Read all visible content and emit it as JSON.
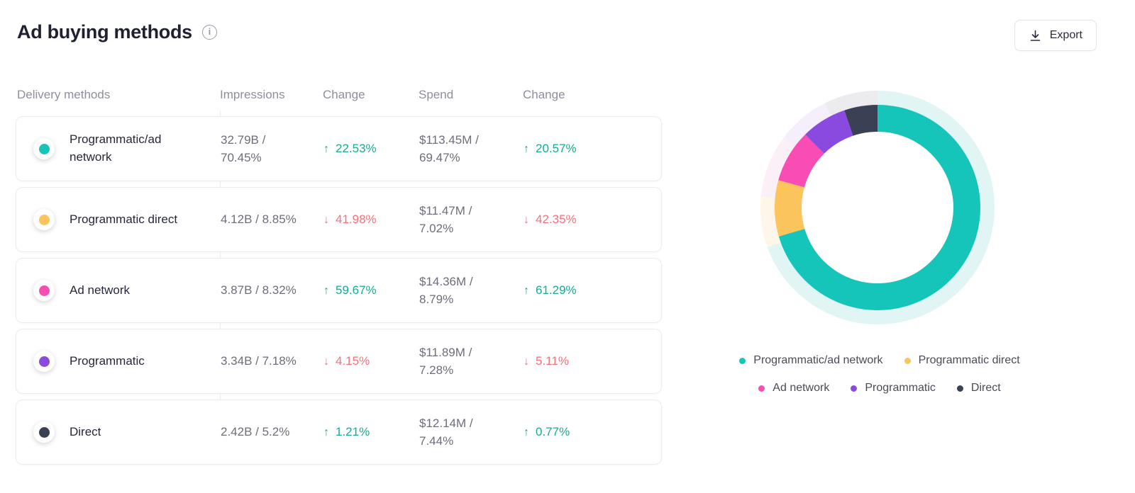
{
  "header": {
    "title": "Ad buying methods",
    "info_tooltip": "i",
    "export_label": "Export"
  },
  "colors": {
    "positive": "#19ab91",
    "negative": "#f5707c",
    "text_dark": "#26273c",
    "text_gray": "#6e6d7b",
    "header_gray": "#8f8e9c"
  },
  "icons": {
    "up": "↑",
    "down": "↓"
  },
  "table": {
    "columns": [
      "Delivery methods",
      "Impressions",
      "Change",
      "Spend",
      "Change"
    ],
    "rows": [
      {
        "name": "Programmatic/ad network",
        "impressions": "32.79B / 70.45%",
        "impressions_change": {
          "dir": "up",
          "value": "22.53%"
        },
        "spend": "$113.45M / 69.47%",
        "spend_change": {
          "dir": "up",
          "value": "20.57%"
        }
      },
      {
        "name": "Programmatic direct",
        "impressions": "4.12B / 8.85%",
        "impressions_change": {
          "dir": "down",
          "value": "41.98%"
        },
        "spend": "$11.47M / 7.02%",
        "spend_change": {
          "dir": "down",
          "value": "42.35%"
        }
      },
      {
        "name": "Ad network",
        "impressions": "3.87B / 8.32%",
        "impressions_change": {
          "dir": "up",
          "value": "59.67%"
        },
        "spend": "$14.36M / 8.79%",
        "spend_change": {
          "dir": "up",
          "value": "61.29%"
        }
      },
      {
        "name": "Programmatic",
        "impressions": "3.34B / 7.18%",
        "impressions_change": {
          "dir": "down",
          "value": "4.15%"
        },
        "spend": "$11.89M / 7.28%",
        "spend_change": {
          "dir": "down",
          "value": "5.11%"
        }
      },
      {
        "name": "Direct",
        "impressions": "2.42B / 5.2%",
        "impressions_change": {
          "dir": "up",
          "value": "1.21%"
        },
        "spend": "$12.14M / 7.44%",
        "spend_change": {
          "dir": "up",
          "value": "0.77%"
        }
      }
    ]
  },
  "chart_data": {
    "type": "pie",
    "subtype": "double-ring-donut",
    "title": "Ad buying methods",
    "start_angle_deg": 0,
    "direction": "clockwise",
    "legend_position": "bottom",
    "rings": {
      "inner": "impressions_share_pct",
      "outer": "spend_share_pct"
    },
    "series": [
      {
        "name": "Programmatic/ad network",
        "color": "#16c5b9",
        "pale_color": "#e0f5f4",
        "impressions_share_pct": 70.45,
        "spend_share_pct": 69.47
      },
      {
        "name": "Programmatic direct",
        "color": "#fbc45d",
        "pale_color": "#fdf6e9",
        "impressions_share_pct": 8.85,
        "spend_share_pct": 7.02
      },
      {
        "name": "Ad network",
        "color": "#fa4db3",
        "pale_color": "#fcf0f8",
        "impressions_share_pct": 8.32,
        "spend_share_pct": 8.79
      },
      {
        "name": "Programmatic",
        "color": "#8a4ae0",
        "pale_color": "#f5eefb",
        "impressions_share_pct": 7.18,
        "spend_share_pct": 7.28
      },
      {
        "name": "Direct",
        "color": "#3b4154",
        "pale_color": "#ececef",
        "impressions_share_pct": 5.2,
        "spend_share_pct": 7.44
      }
    ],
    "legend_rows": [
      [
        0,
        1
      ],
      [
        2,
        3,
        4
      ]
    ]
  }
}
